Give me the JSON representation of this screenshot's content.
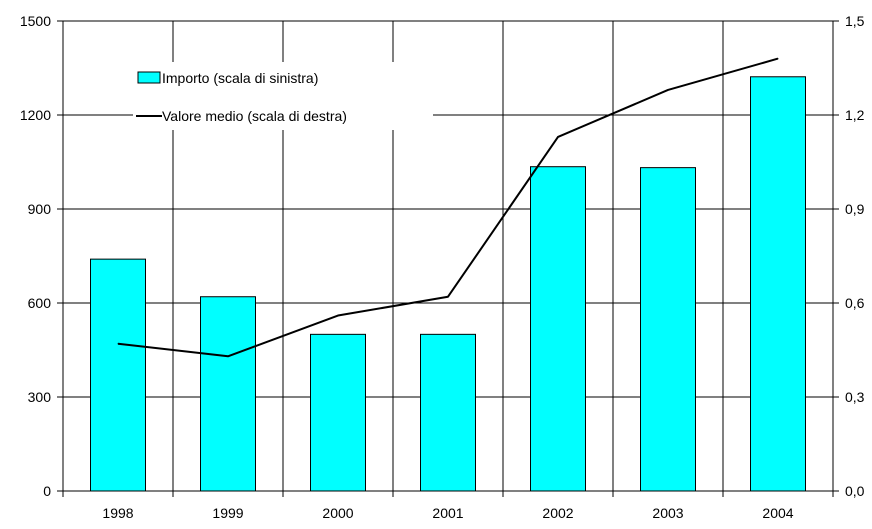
{
  "chart_data": {
    "type": "bar",
    "title": "",
    "xlabel": "",
    "ylabel": "",
    "categories": [
      "1998",
      "1999",
      "2000",
      "2001",
      "2002",
      "2003",
      "2004"
    ],
    "series": [
      {
        "name": "Importo (scala di sinistra)",
        "type": "bar",
        "axis": "left",
        "color": "#00ffff",
        "values": [
          740,
          620,
          500,
          500,
          1035,
          1032,
          1322
        ]
      },
      {
        "name": "Valore medio (scala di destra)",
        "type": "line",
        "axis": "right",
        "color": "#000000",
        "values": [
          0.47,
          0.43,
          0.56,
          0.62,
          1.13,
          1.28,
          1.38
        ]
      }
    ],
    "ylim": [
      0,
      1500
    ],
    "y_ticks": [
      "0",
      "300",
      "600",
      "900",
      "1200",
      "1500"
    ],
    "y2lim": [
      0,
      1.5
    ],
    "y2_ticks": [
      "0,0",
      "0,3",
      "0,6",
      "0,9",
      "1,2",
      "1,5"
    ],
    "grid": true,
    "legend_position": "top-left"
  }
}
